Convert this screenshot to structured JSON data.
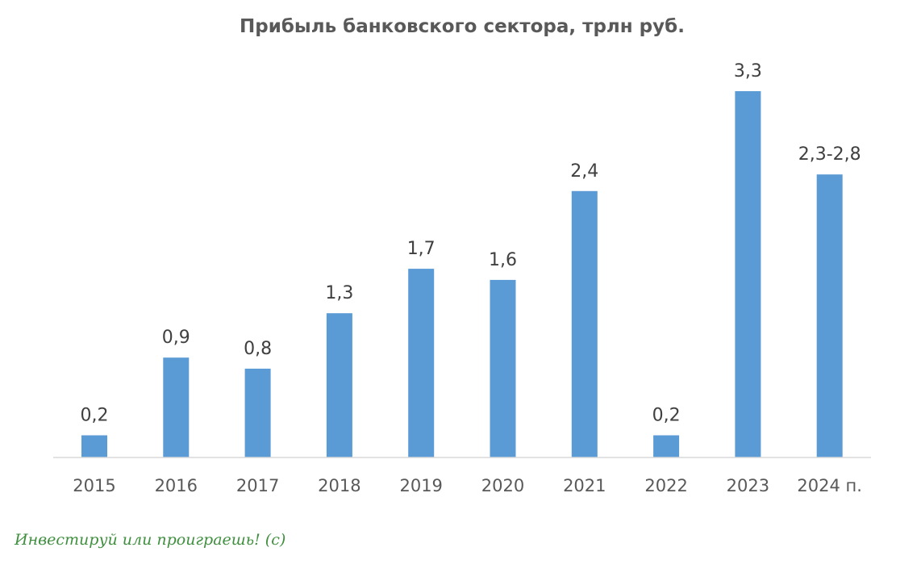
{
  "chart_data": {
    "type": "bar",
    "title": "Прибыль банковского сектора, трлн руб.",
    "xlabel": "",
    "ylabel": "",
    "categories": [
      "2015",
      "2016",
      "2017",
      "2018",
      "2019",
      "2020",
      "2021",
      "2022",
      "2023",
      "2024 п."
    ],
    "values": [
      0.2,
      0.9,
      0.8,
      1.3,
      1.7,
      1.6,
      2.4,
      0.2,
      3.3,
      2.55
    ],
    "data_labels": [
      "0,2",
      "0,9",
      "0,8",
      "1,3",
      "1,7",
      "1,6",
      "2,4",
      "0,2",
      "3,3",
      "2,3-2,8"
    ],
    "ylim": [
      0,
      3.3
    ],
    "grid": false,
    "legend": "none",
    "bar_color": "#5b9bd5",
    "axis_color": "#d9d9d9"
  },
  "watermark": "Инвестируй или проиграешь! (с)"
}
